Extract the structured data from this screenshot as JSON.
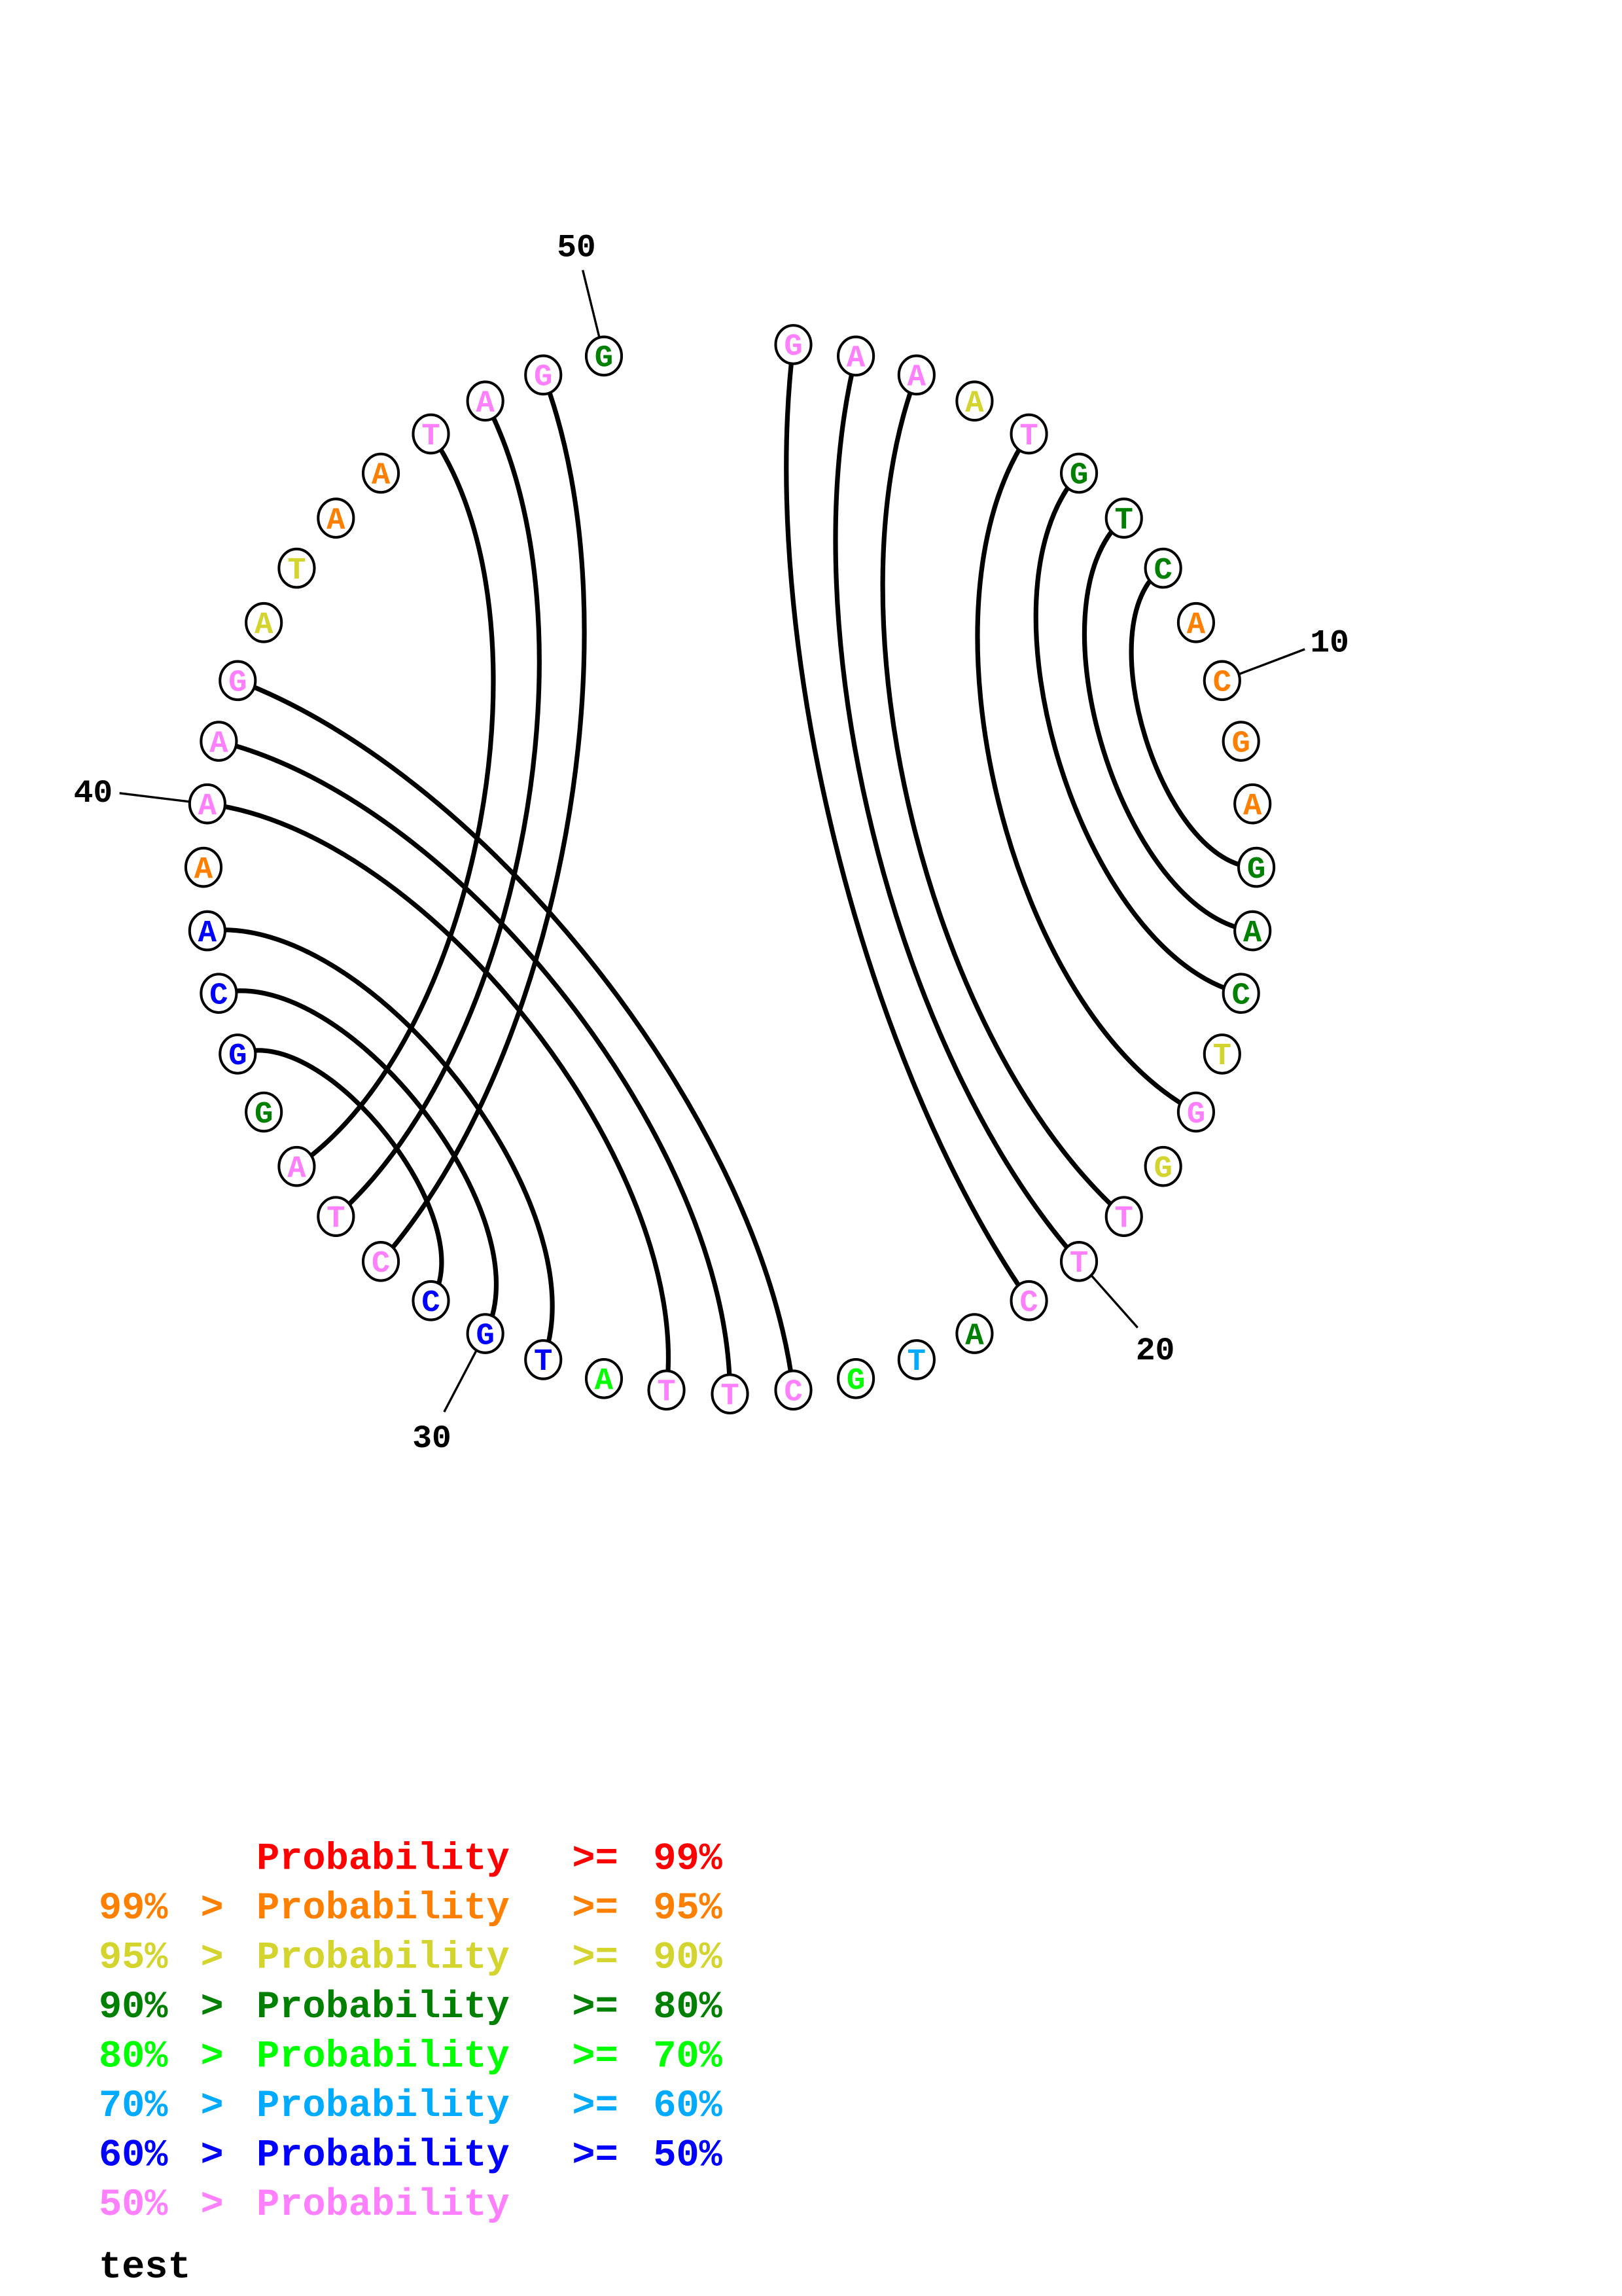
{
  "diagram": {
    "type": "circular-base-pairing-plot",
    "sequence": [
      "G",
      "A",
      "A",
      "A",
      "T",
      "G",
      "T",
      "C",
      "A",
      "C",
      "G",
      "A",
      "G",
      "A",
      "C",
      "T",
      "G",
      "G",
      "T",
      "T",
      "C",
      "A",
      "T",
      "G",
      "C",
      "T",
      "T",
      "A",
      "T",
      "G",
      "C",
      "C",
      "T",
      "A",
      "G",
      "G",
      "C",
      "A",
      "A",
      "A",
      "A",
      "G",
      "A",
      "T",
      "A",
      "A",
      "T",
      "A",
      "G",
      "G"
    ],
    "prob_class": [
      7,
      7,
      7,
      2,
      7,
      3,
      3,
      3,
      1,
      1,
      1,
      1,
      3,
      3,
      3,
      2,
      7,
      2,
      7,
      7,
      7,
      3,
      5,
      4,
      7,
      7,
      7,
      4,
      6,
      6,
      6,
      7,
      7,
      7,
      3,
      6,
      6,
      6,
      1,
      7,
      7,
      7,
      2,
      2,
      1,
      1,
      7,
      7,
      7,
      3
    ],
    "pairs": [
      [
        1,
        21
      ],
      [
        2,
        20
      ],
      [
        3,
        19
      ],
      [
        5,
        17
      ],
      [
        6,
        15
      ],
      [
        7,
        14
      ],
      [
        8,
        13
      ],
      [
        42,
        25
      ],
      [
        41,
        26
      ],
      [
        40,
        27
      ],
      [
        38,
        29
      ],
      [
        37,
        30
      ],
      [
        36,
        31
      ],
      [
        47,
        34
      ],
      [
        48,
        33
      ],
      [
        49,
        32
      ]
    ],
    "position_labels": [
      {
        "pos": 10,
        "text": "10"
      },
      {
        "pos": 20,
        "text": "20"
      },
      {
        "pos": 30,
        "text": "30"
      },
      {
        "pos": 40,
        "text": "40"
      },
      {
        "pos": 50,
        "text": "50"
      }
    ]
  },
  "colors": [
    "#ff0000",
    "#ff8000",
    "#d4d42e",
    "#008000",
    "#00ff00",
    "#00aaff",
    "#0000ff",
    "#ff80ff"
  ],
  "legend": [
    {
      "lower": "",
      "sep": "",
      "text": "Probability",
      "op": ">=",
      "upper": "99%"
    },
    {
      "lower": "99%",
      "sep": ">",
      "text": "Probability",
      "op": ">=",
      "upper": "95%"
    },
    {
      "lower": "95%",
      "sep": ">",
      "text": "Probability",
      "op": ">=",
      "upper": "90%"
    },
    {
      "lower": "90%",
      "sep": ">",
      "text": "Probability",
      "op": ">=",
      "upper": "80%"
    },
    {
      "lower": "80%",
      "sep": ">",
      "text": "Probability",
      "op": ">=",
      "upper": "70%"
    },
    {
      "lower": "70%",
      "sep": ">",
      "text": "Probability",
      "op": ">=",
      "upper": "60%"
    },
    {
      "lower": "60%",
      "sep": ">",
      "text": "Probability",
      "op": ">=",
      "upper": "50%"
    },
    {
      "lower": "50%",
      "sep": ">",
      "text": "Probability",
      "op": "",
      "upper": ""
    }
  ],
  "caption": "test"
}
